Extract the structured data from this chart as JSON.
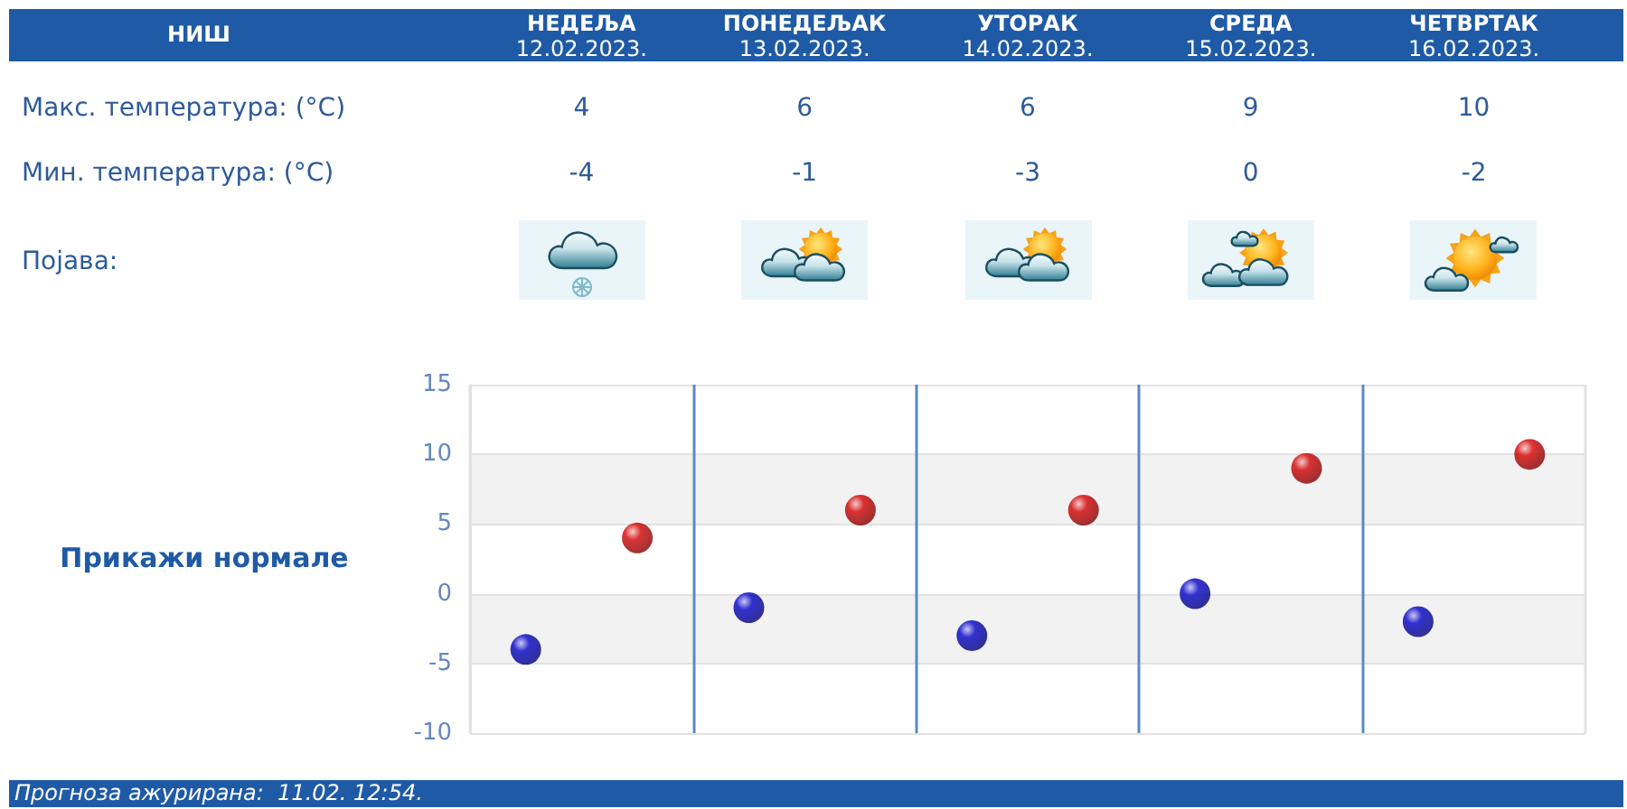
{
  "chart_data": [
    {
      "type": "other",
      "title": "НИШ",
      "categories": [
        "НЕДЕЉА\n12.02.2023.",
        "ПОНЕДЕЉАК\n13.02.2023.",
        "УТОРАК\n14.02.2023.",
        "СРЕДА\n15.02.2023.",
        "ЧЕТВРТАК\n16.02.2023."
      ],
      "series": [
        {
          "name": "Макс. температура: (°C)",
          "values": [
            4,
            6,
            6,
            9,
            10
          ]
        },
        {
          "name": "Мин. температура: (°C)",
          "values": [
            -4,
            -1,
            -3,
            0,
            -2
          ]
        }
      ],
      "data_labels": true,
      "annotations": [
        "Појава:"
      ]
    },
    {
      "type": "scatter",
      "categories": [
        null,
        null,
        null,
        null,
        null
      ],
      "series": [
        {
          "color": "#d40000",
          "values": [
            4,
            6,
            6,
            9,
            10
          ]
        },
        {
          "color": "#0000c8",
          "values": [
            -4,
            -1,
            -3,
            0,
            -2
          ]
        }
      ],
      "ylim": [
        -10,
        15
      ],
      "yticks": [
        -10,
        -5,
        0,
        5,
        10,
        15
      ],
      "grid": true,
      "marker": "circle",
      "tick_labels": "y",
      "annotations": [
        "Прикажи нормале",
        "Прогноза ажурирана:  11.02. 12:54."
      ]
    }
  ]
}
